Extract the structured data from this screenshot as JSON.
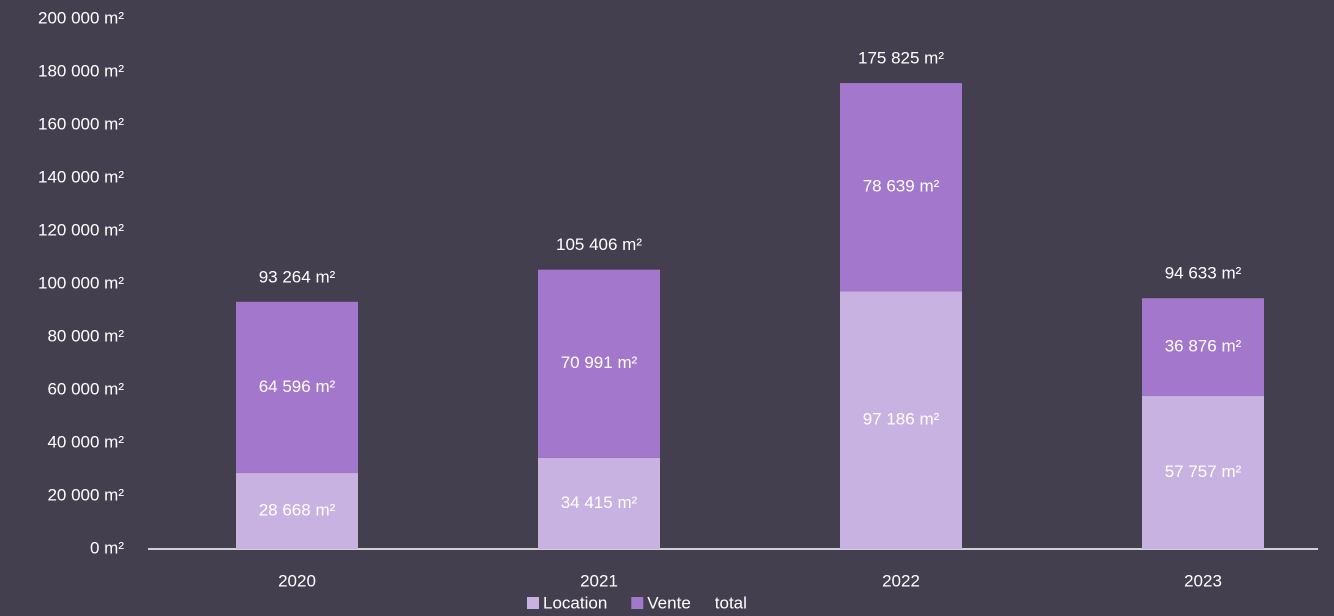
{
  "chart_data": {
    "type": "stacked_bar",
    "categories": [
      "2020",
      "2021",
      "2022",
      "2023"
    ],
    "series": [
      {
        "name": "Location",
        "color": "#c8b2e1",
        "values": [
          28668,
          34415,
          97186,
          57757
        ],
        "value_labels": [
          "28 668 m²",
          "34 415 m²",
          "97 186 m²",
          "57 757 m²"
        ]
      },
      {
        "name": "Vente",
        "color": "#a378cc",
        "values": [
          64596,
          70991,
          78639,
          36876
        ],
        "value_labels": [
          "64 596 m²",
          "70 991 m²",
          "78 639 m²",
          "36 876 m²"
        ]
      },
      {
        "name": "total",
        "values": [
          93264,
          105406,
          175825,
          94633
        ],
        "value_labels": [
          "93 264 m²",
          "105 406 m²",
          "175 825 m²",
          "94 633 m²"
        ]
      }
    ],
    "ylim": [
      0,
      200000
    ],
    "yticks": [
      {
        "value": 0,
        "label": "0 m²"
      },
      {
        "value": 20000,
        "label": "20 000 m²"
      },
      {
        "value": 40000,
        "label": "40 000 m²"
      },
      {
        "value": 60000,
        "label": "60 000 m²"
      },
      {
        "value": 80000,
        "label": "80 000 m²"
      },
      {
        "value": 100000,
        "label": "100 000 m²"
      },
      {
        "value": 120000,
        "label": "120 000 m²"
      },
      {
        "value": 140000,
        "label": "140 000 m²"
      },
      {
        "value": 160000,
        "label": "160 000 m²"
      },
      {
        "value": 180000,
        "label": "180 000 m²"
      },
      {
        "value": 200000,
        "label": "200 000 m²"
      }
    ],
    "grid": false,
    "legend": "bottom"
  }
}
